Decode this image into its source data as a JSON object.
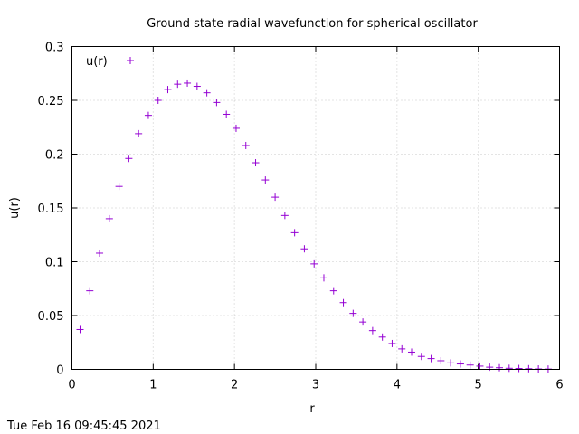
{
  "chart_data": {
    "type": "scatter",
    "title": "Ground state radial wavefunction for spherical oscillator",
    "xlabel": "r",
    "ylabel": "u(r)",
    "xlim": [
      0,
      6
    ],
    "ylim": [
      0,
      0.3
    ],
    "x_ticks": [
      0,
      1,
      2,
      3,
      4,
      5,
      6
    ],
    "x_tick_labels": [
      "0",
      "1",
      "2",
      "3",
      "4",
      "5",
      "6"
    ],
    "y_ticks": [
      0,
      0.05,
      0.1,
      0.15,
      0.2,
      0.25,
      0.3
    ],
    "y_tick_labels": [
      "0",
      "0.05",
      "0.1",
      "0.15",
      "0.2",
      "0.25",
      "0.3"
    ],
    "grid": true,
    "legend_position": "top-left",
    "series": [
      {
        "name": "u(r)",
        "color": "#9400d3",
        "marker": "plus",
        "x": [
          0.1,
          0.22,
          0.34,
          0.46,
          0.58,
          0.7,
          0.82,
          0.94,
          1.06,
          1.18,
          1.3,
          1.42,
          1.54,
          1.66,
          1.78,
          1.9,
          2.02,
          2.14,
          2.26,
          2.38,
          2.5,
          2.62,
          2.74,
          2.86,
          2.98,
          3.1,
          3.22,
          3.34,
          3.46,
          3.58,
          3.7,
          3.82,
          3.94,
          4.06,
          4.18,
          4.3,
          4.42,
          4.54,
          4.66,
          4.78,
          4.9,
          5.02,
          5.14,
          5.26,
          5.38,
          5.5,
          5.62,
          5.74,
          5.86
        ],
        "y": [
          0.037,
          0.073,
          0.108,
          0.14,
          0.17,
          0.196,
          0.219,
          0.236,
          0.25,
          0.26,
          0.265,
          0.266,
          0.263,
          0.257,
          0.248,
          0.237,
          0.224,
          0.208,
          0.192,
          0.176,
          0.16,
          0.143,
          0.127,
          0.112,
          0.098,
          0.085,
          0.073,
          0.062,
          0.052,
          0.044,
          0.036,
          0.03,
          0.024,
          0.019,
          0.016,
          0.012,
          0.01,
          0.008,
          0.006,
          0.005,
          0.004,
          0.003,
          0.002,
          0.0015,
          0.001,
          0.0008,
          0.0006,
          0.0004,
          0.0003
        ]
      }
    ]
  },
  "footer": {
    "timestamp": "Tue Feb 16 09:45:45 2021"
  }
}
